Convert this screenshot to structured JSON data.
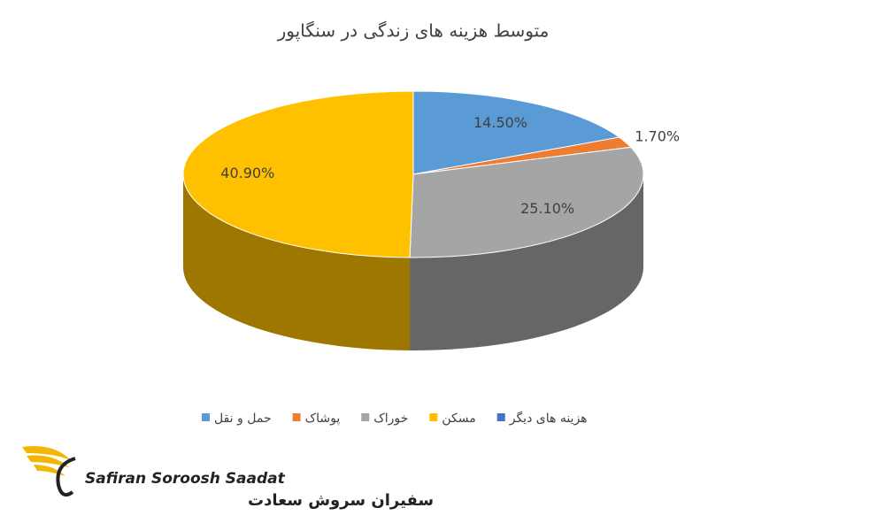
{
  "chart_data": {
    "type": "pie3d",
    "title": "متوسط هزینه های زندگی در سنگاپور",
    "categories": [
      "حمل و نقل",
      "پوشاک",
      "خوراک",
      "مسکن",
      "هزینه های دیگر"
    ],
    "values": [
      14.5,
      1.7,
      25.1,
      40.9,
      null
    ],
    "value_labels": [
      "14.50%",
      "1.70%",
      "25.10%",
      "40.90%",
      null
    ],
    "colors": [
      "#5b9bd5",
      "#ed7d31",
      "#a5a5a5",
      "#ffc000",
      "#4472c4"
    ]
  },
  "branding": {
    "name_latin": "Safiran Soroosh Saadat",
    "name_persian": "سفیران سروش سعادت"
  }
}
